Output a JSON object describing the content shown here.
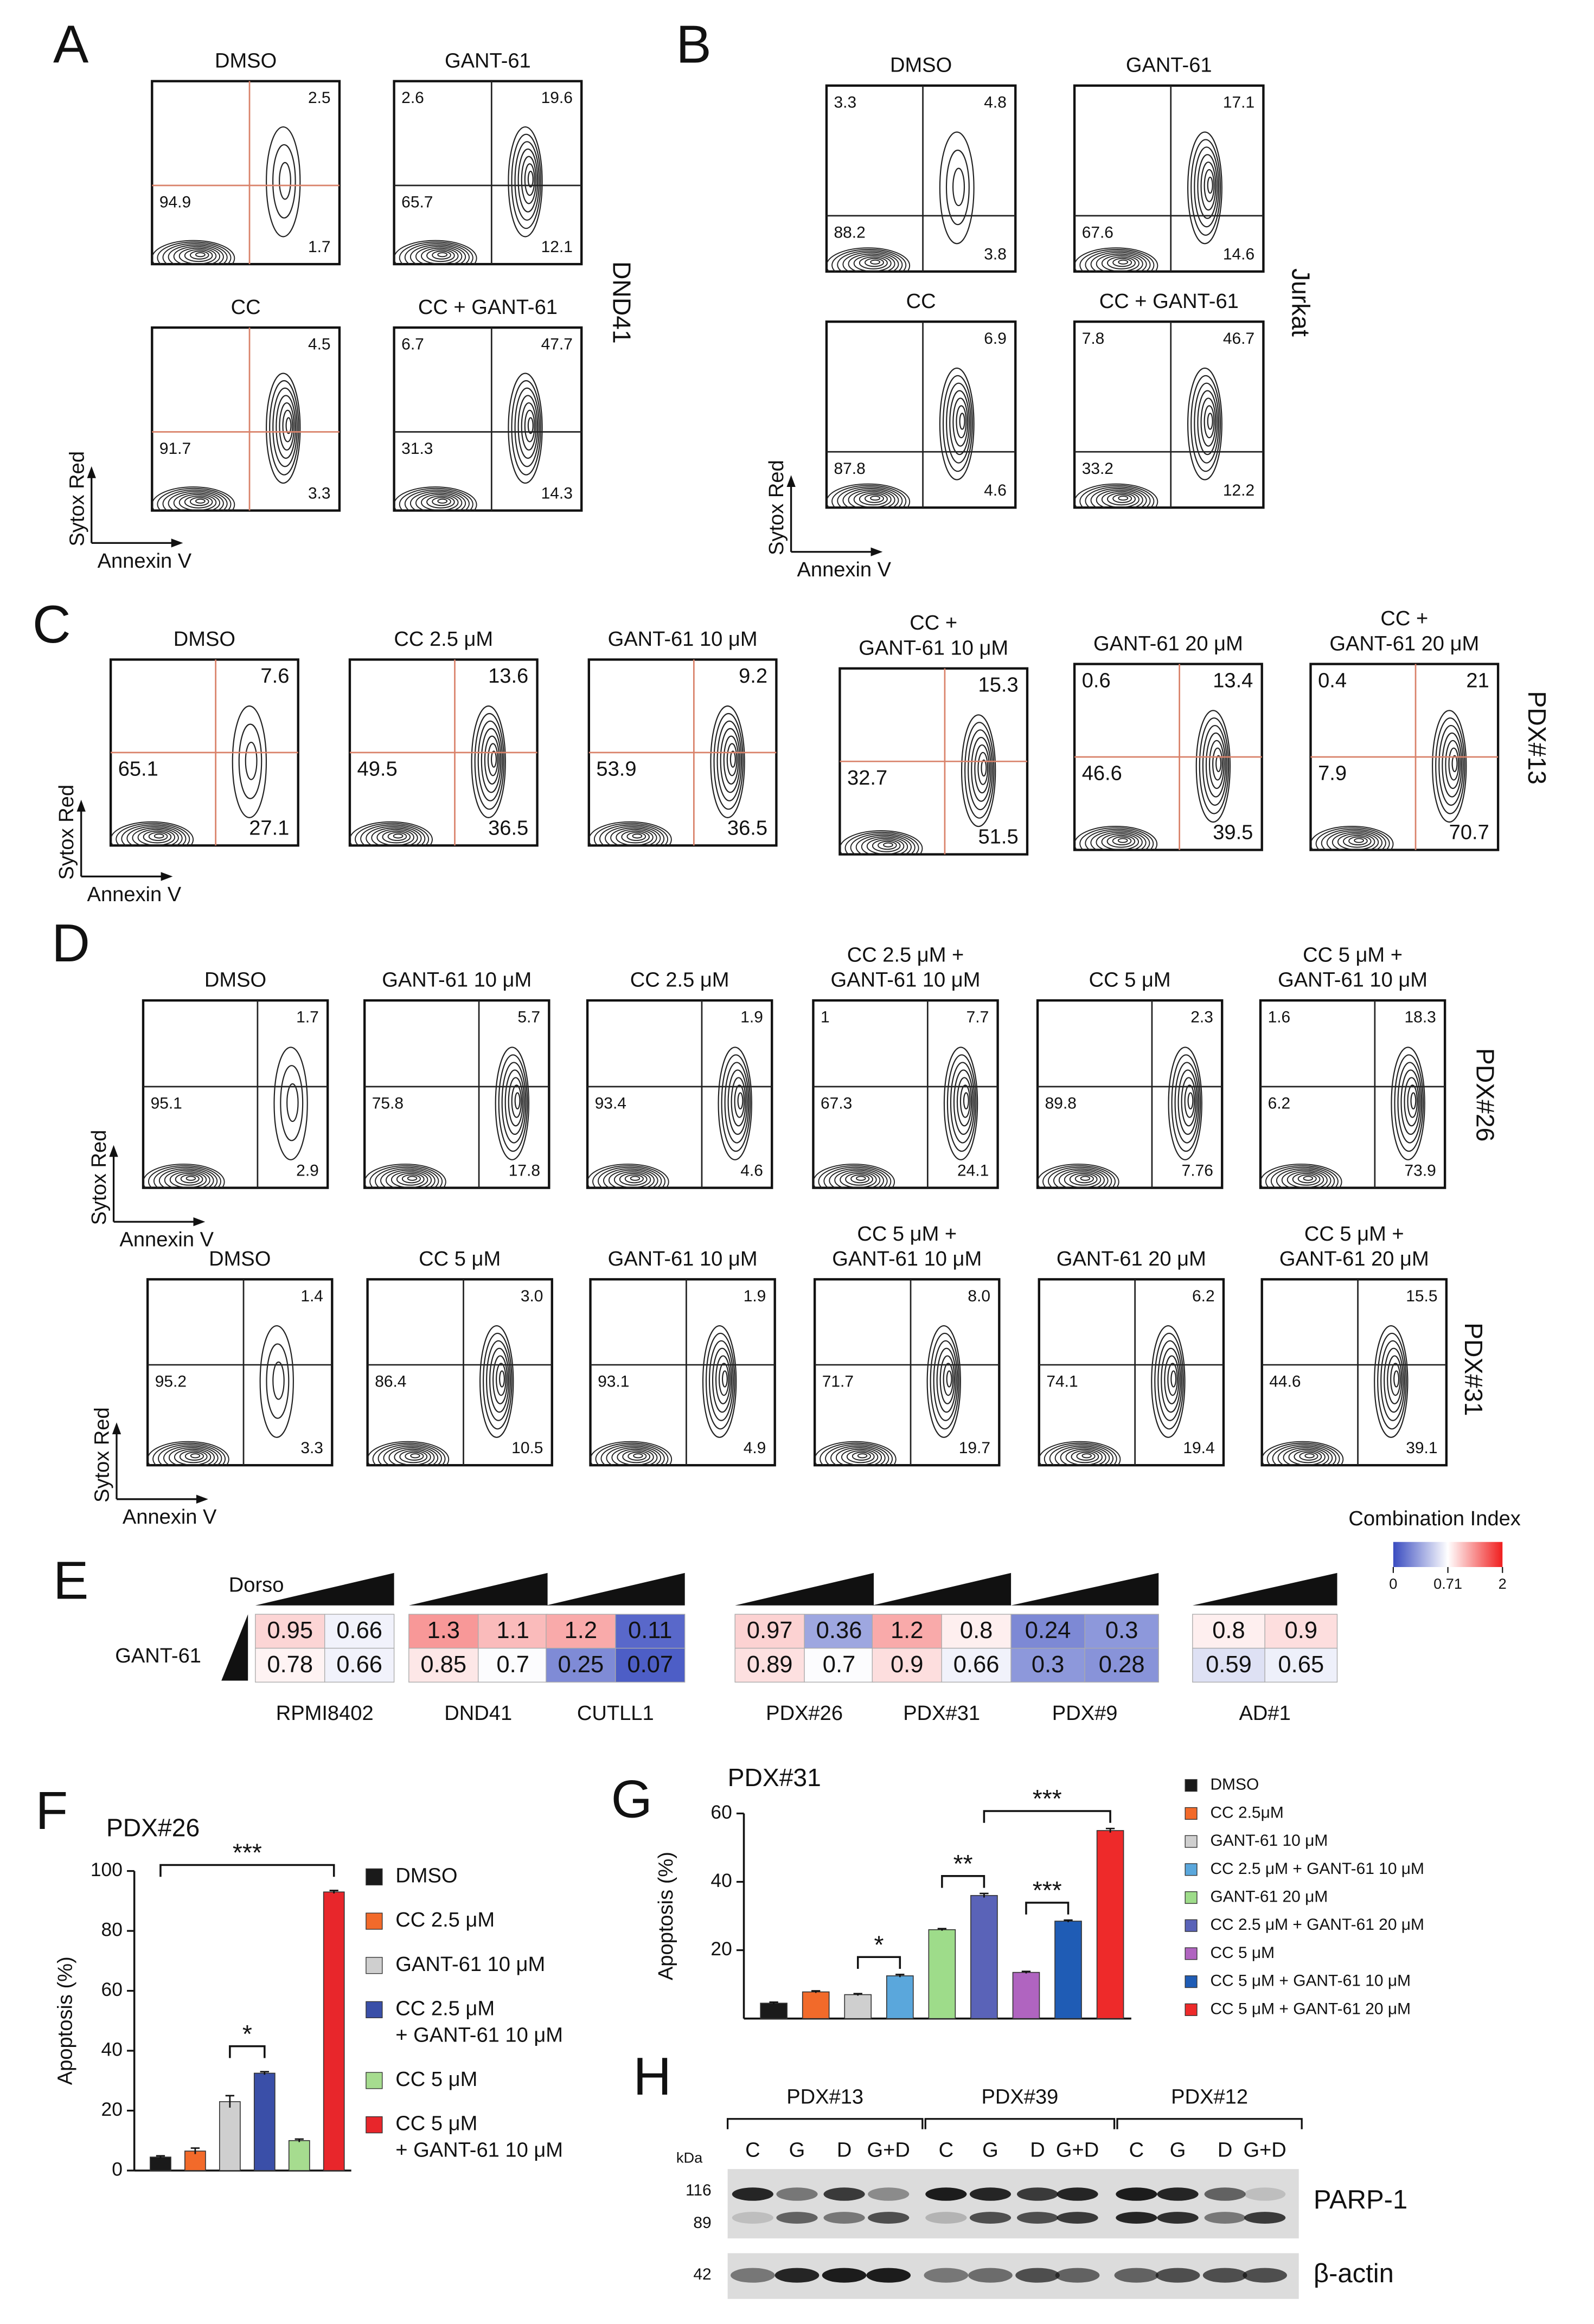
{
  "panels": [
    {
      "label": "A",
      "side_label": "DND41",
      "y_axis": "Sytox Red",
      "x_axis": "Annexin V",
      "plots": [
        {
          "title": [
            "DMSO"
          ],
          "quadrants": {
            "ur": "2.5",
            "ll": "94.9",
            "lr": "1.7"
          }
        },
        {
          "title": [
            "GANT-61"
          ],
          "quadrants": {
            "ul": "2.6",
            "ur": "19.6",
            "ll": "65.7",
            "lr": "12.1"
          }
        },
        {
          "title": [
            "CC"
          ],
          "quadrants": {
            "ur": "4.5",
            "ll": "91.7",
            "lr": "3.3"
          }
        },
        {
          "title": [
            "CC + GANT-61"
          ],
          "quadrants": {
            "ul": "6.7",
            "ur": "47.7",
            "ll": "31.3",
            "lr": "14.3"
          }
        }
      ]
    },
    {
      "label": "B",
      "side_label": "Jurkat",
      "y_axis": "Sytox Red",
      "x_axis": "Annexin V",
      "plots": [
        {
          "title": [
            "DMSO"
          ],
          "quadrants": {
            "ul": "3.3",
            "ur": "4.8",
            "ll": "88.2",
            "lr": "3.8"
          }
        },
        {
          "title": [
            "GANT-61"
          ],
          "quadrants": {
            "ur": "17.1",
            "ll": "67.6",
            "lr": "14.6"
          }
        },
        {
          "title": [
            "CC"
          ],
          "quadrants": {
            "ur": "6.9",
            "ll": "87.8",
            "lr": "4.6"
          }
        },
        {
          "title": [
            "CC + GANT-61"
          ],
          "quadrants": {
            "ul": "7.8",
            "ur": "46.7",
            "ll": "33.2",
            "lr": "12.2"
          }
        }
      ]
    },
    {
      "label": "C",
      "side_label": "PDX#13",
      "y_axis": "Sytox Red",
      "x_axis": "Annexin V",
      "plots": [
        {
          "title": [
            "DMSO"
          ],
          "quadrants": {
            "ur": "7.6",
            "ll": "65.1",
            "lr": "27.1"
          }
        },
        {
          "title": [
            "CC 2.5 μM"
          ],
          "quadrants": {
            "ur": "13.6",
            "ll": "49.5",
            "lr": "36.5"
          }
        },
        {
          "title": [
            "GANT-61 10 μM"
          ],
          "quadrants": {
            "ur": "9.2",
            "ll": "53.9",
            "lr": "36.5"
          }
        },
        {
          "title": [
            "CC +",
            "GANT-61 10 μM"
          ],
          "quadrants": {
            "ur": "15.3",
            "ll": "32.7",
            "lr": "51.5"
          }
        },
        {
          "title": [
            "GANT-61 20 μM"
          ],
          "quadrants": {
            "ul": "0.6",
            "ur": "13.4",
            "ll": "46.6",
            "lr": "39.5"
          }
        },
        {
          "title": [
            "CC +",
            "GANT-61 20 μM"
          ],
          "quadrants": {
            "ul": "0.4",
            "ur": "21",
            "ll": "7.9",
            "lr": "70.7"
          }
        }
      ]
    },
    {
      "label": "D",
      "side_label": "PDX#26",
      "y_axis": "Sytox Red",
      "x_axis": "Annexin V",
      "plots": [
        {
          "title": [
            "DMSO"
          ],
          "quadrants": {
            "ur": "1.7",
            "ll": "95.1",
            "lr": "2.9"
          }
        },
        {
          "title": [
            "GANT-61 10 μM"
          ],
          "quadrants": {
            "ur": "5.7",
            "ll": "75.8",
            "lr": "17.8"
          }
        },
        {
          "title": [
            "CC 2.5 μM"
          ],
          "quadrants": {
            "ur": "1.9",
            "ll": "93.4",
            "lr": "4.6"
          }
        },
        {
          "title": [
            "CC 2.5 μM +",
            "GANT-61 10 μM"
          ],
          "quadrants": {
            "ul": "1",
            "ur": "7.7",
            "ll": "67.3",
            "lr": "24.1"
          }
        },
        {
          "title": [
            "CC 5 μM"
          ],
          "quadrants": {
            "ur": "2.3",
            "ll": "89.8",
            "lr": "7.76"
          }
        },
        {
          "title": [
            "CC 5 μM +",
            "GANT-61 10 μM"
          ],
          "quadrants": {
            "ul": "1.6",
            "ur": "18.3",
            "ll": "6.2",
            "lr": "73.9"
          }
        }
      ]
    },
    {
      "side_label": "PDX#31",
      "y_axis": "Sytox Red",
      "x_axis": "Annexin V",
      "plots": [
        {
          "title": [
            "DMSO"
          ],
          "quadrants": {
            "ur": "1.4",
            "ll": "95.2",
            "lr": "3.3"
          }
        },
        {
          "title": [
            "CC 5 μM"
          ],
          "quadrants": {
            "ur": "3.0",
            "ll": "86.4",
            "lr": "10.5"
          }
        },
        {
          "title": [
            "GANT-61 10 μM"
          ],
          "quadrants": {
            "ur": "1.9",
            "ll": "93.1",
            "lr": "4.9"
          }
        },
        {
          "title": [
            "CC 5 μM +",
            "GANT-61 10 μM"
          ],
          "quadrants": {
            "ur": "8.0",
            "ll": "71.7",
            "lr": "19.7"
          }
        },
        {
          "title": [
            "GANT-61 20 μM"
          ],
          "quadrants": {
            "ur": "6.2",
            "ll": "74.1",
            "lr": "19.4"
          }
        },
        {
          "title": [
            "CC 5 μM +",
            "GANT-61 20 μM"
          ],
          "quadrants": {
            "ur": "15.5",
            "ll": "44.6",
            "lr": "39.1"
          }
        }
      ]
    }
  ],
  "heatmap": {
    "label": "E",
    "column_label": "Dorso",
    "row_label": "GANT-61",
    "legend_title": "Combination Index",
    "scale_ticks": [
      0,
      0.71,
      2
    ],
    "groups": [
      {
        "name": "RPMI8402",
        "cells": [
          [
            0.95,
            0.66
          ],
          [
            0.78,
            0.66
          ]
        ]
      },
      {
        "name": "DND41",
        "cells": [
          [
            1.3,
            1.1
          ],
          [
            0.85,
            0.7
          ]
        ]
      },
      {
        "name": "CUTLL1",
        "cells": [
          [
            1.2,
            0.11
          ],
          [
            0.25,
            0.07
          ]
        ]
      },
      {
        "name": "PDX#26",
        "cells": [
          [
            0.97,
            0.36
          ],
          [
            0.89,
            0.7
          ]
        ]
      },
      {
        "name": "PDX#31",
        "cells": [
          [
            1.2,
            0.8
          ],
          [
            0.9,
            0.66
          ]
        ]
      },
      {
        "name": "PDX#9",
        "cells": [
          [
            0.24,
            0.3
          ],
          [
            0.3,
            0.28
          ]
        ]
      },
      {
        "name": "AD#1",
        "cells": [
          [
            0.8,
            0.9
          ],
          [
            0.59,
            0.65
          ]
        ]
      }
    ]
  },
  "chart_data": [
    {
      "type": "bar",
      "label": "F",
      "title": "PDX#26",
      "y_label": "Apoptosis (%)",
      "categories": [
        [
          "DMSO"
        ],
        [
          "CC 2.5 μM"
        ],
        [
          "GANT-61 10 μM"
        ],
        [
          "CC 2.5 μM",
          "+ GANT-61 10 μM"
        ],
        [
          "CC 5 μM"
        ],
        [
          "CC 5 μM",
          "+ GANT-61 10 μM"
        ]
      ],
      "values": [
        4.5,
        6.5,
        23,
        32.5,
        10,
        93
      ],
      "errors": [
        0.4,
        1,
        2,
        0.5,
        0.5,
        0.5
      ],
      "colors": [
        "#1a1a1a",
        "#f26a2a",
        "#cfcfcf",
        "#3a4fa8",
        "#a6dc8f",
        "#e8262b"
      ],
      "ylim": [
        0,
        100
      ],
      "yticks": [
        0,
        20,
        40,
        60,
        80,
        100
      ],
      "significance": [
        {
          "label": "*",
          "bars": [
            2,
            3
          ]
        },
        {
          "label": "***",
          "bars": [
            0,
            5
          ]
        }
      ]
    },
    {
      "type": "bar",
      "label": "G",
      "title": "PDX#31",
      "y_label": "Apoptosis (%)",
      "categories": [
        [
          "DMSO"
        ],
        [
          "CC 2.5μM"
        ],
        [
          "GANT-61 10 μM"
        ],
        [
          "CC 2.5 μM + GANT-61 10 μM"
        ],
        [
          "GANT-61 20 μM"
        ],
        [
          "CC 2.5 μM + GANT-61 20 μM"
        ],
        [
          "CC 5 μM"
        ],
        [
          "CC 5 μM + GANT-61 10 μM"
        ],
        [
          "CC 5 μM + GANT-61 20 μM"
        ]
      ],
      "values": [
        4.5,
        7.8,
        7,
        12.5,
        26,
        36,
        13.5,
        28.5,
        55
      ],
      "errors": [
        0.3,
        0.3,
        0.3,
        0.4,
        0.3,
        0.6,
        0.3,
        0.3,
        0.6
      ],
      "colors": [
        "#1a1a1a",
        "#f26a2a",
        "#cfcfcf",
        "#5aa7dc",
        "#9edc8a",
        "#5a63b8",
        "#b064c0",
        "#1f5cb5",
        "#ee2a2a"
      ],
      "ylim": [
        0,
        60
      ],
      "yticks": [
        20,
        40,
        60
      ],
      "significance": [
        {
          "label": "*",
          "bars": [
            2,
            3
          ]
        },
        {
          "label": "**",
          "bars": [
            4,
            5
          ]
        },
        {
          "label": "***",
          "bars": [
            6,
            7
          ]
        },
        {
          "label": "***",
          "bars": [
            5,
            8
          ]
        }
      ]
    }
  ],
  "blot": {
    "label": "H",
    "unit": "kDa",
    "markers": [
      "116",
      "89",
      "42"
    ],
    "proteins": [
      "PARP-1",
      "β-actin"
    ],
    "groups": [
      {
        "name": "PDX#13",
        "lanes": [
          "C",
          "G",
          "D",
          "G+D"
        ]
      },
      {
        "name": "PDX#39",
        "lanes": [
          "C",
          "G",
          "D",
          "G+D"
        ]
      },
      {
        "name": "PDX#12",
        "lanes": [
          "C",
          "G",
          "D",
          "G+D"
        ]
      }
    ]
  }
}
